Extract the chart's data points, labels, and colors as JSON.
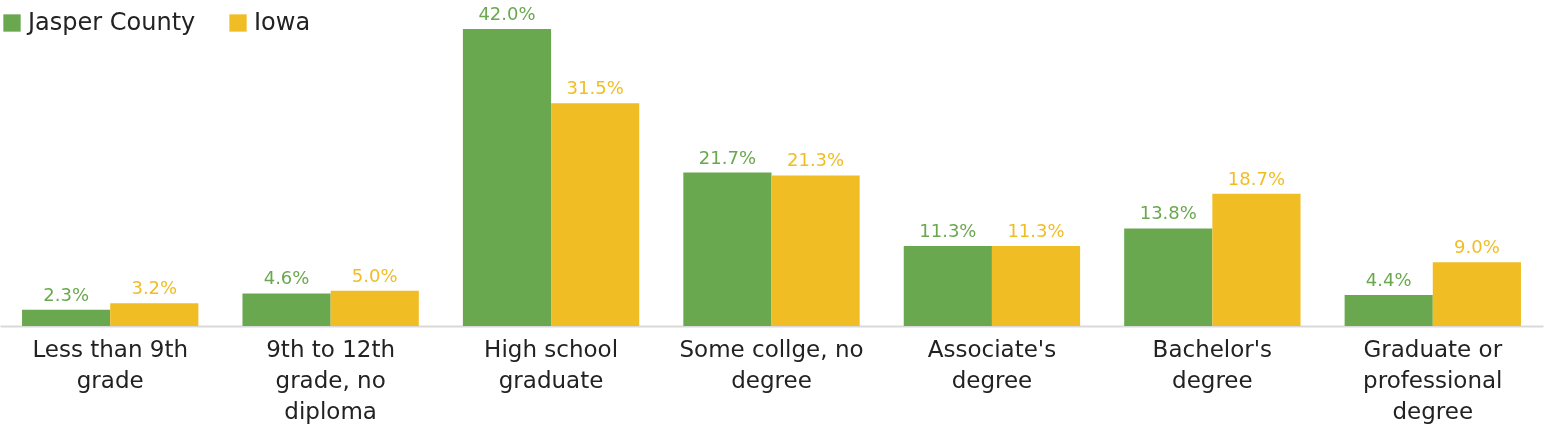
{
  "chart_data": {
    "type": "bar",
    "categories": [
      "Less than 9th grade",
      "9th to 12th grade, no diploma",
      "High school graduate",
      "Some collge, no degree",
      "Associate's degree",
      "Bachelor's degree",
      "Graduate or professional degree"
    ],
    "series": [
      {
        "name": "Jasper County",
        "color": "#6aa84f",
        "values": [
          2.3,
          4.6,
          42.0,
          21.7,
          11.3,
          13.8,
          4.4
        ],
        "value_labels": [
          "2.3%",
          "4.6%",
          "42.0%",
          "21.7%",
          "11.3%",
          "13.8%",
          "4.4%"
        ]
      },
      {
        "name": "Iowa",
        "color": "#f0bd24",
        "values": [
          3.2,
          5.0,
          31.5,
          21.3,
          11.3,
          18.7,
          9.0
        ],
        "value_labels": [
          "3.2%",
          "5.0%",
          "31.5%",
          "21.3%",
          "11.3%",
          "18.7%",
          "9.0%"
        ]
      }
    ],
    "legend": "top",
    "tick_labels": "x",
    "grid": false
  }
}
